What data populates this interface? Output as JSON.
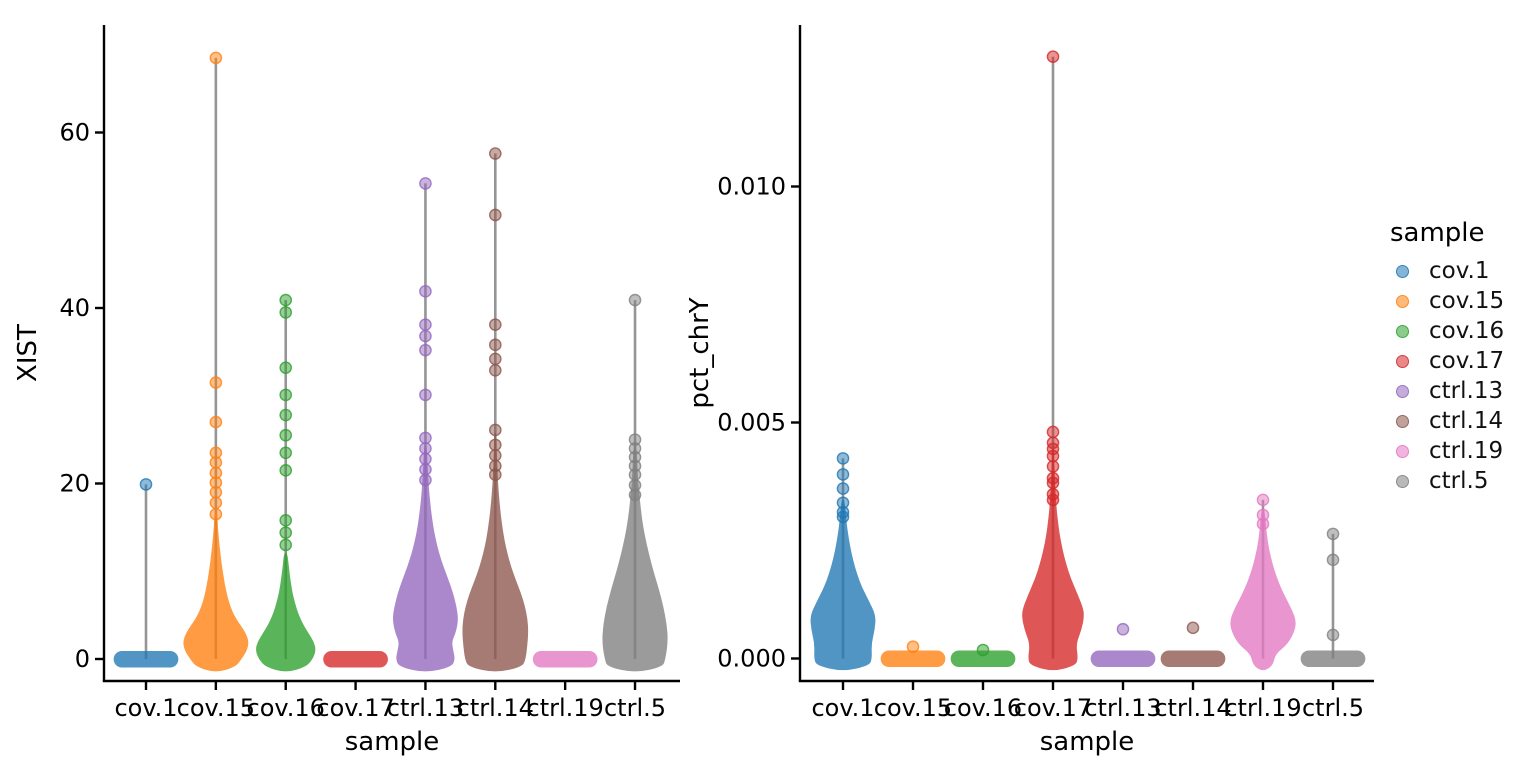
{
  "figure": {
    "background": "#ffffff",
    "stem_color": "#8a8a8a",
    "axis_color": "#000000"
  },
  "legend": {
    "title": "sample",
    "items": [
      {
        "label": "cov.1",
        "color": "#1f77b4"
      },
      {
        "label": "cov.15",
        "color": "#ff7f0e"
      },
      {
        "label": "cov.16",
        "color": "#2ca02c"
      },
      {
        "label": "cov.17",
        "color": "#d62728"
      },
      {
        "label": "ctrl.13",
        "color": "#9467bd"
      },
      {
        "label": "ctrl.14",
        "color": "#8c564b"
      },
      {
        "label": "ctrl.19",
        "color": "#e377c2"
      },
      {
        "label": "ctrl.5",
        "color": "#7f7f7f"
      }
    ]
  },
  "chart_data": [
    {
      "type": "violin",
      "panel": "left",
      "xlabel": "sample",
      "ylabel": "XIST",
      "ylim": [
        -2.5,
        72.3
      ],
      "grid": false,
      "categories": [
        "cov.1",
        "cov.15",
        "cov.16",
        "cov.17",
        "ctrl.13",
        "ctrl.14",
        "ctrl.19",
        "ctrl.5"
      ],
      "yticks": [
        {
          "value": 0,
          "label": "0"
        },
        {
          "value": 20,
          "label": "20"
        },
        {
          "value": 40,
          "label": "40"
        },
        {
          "value": 60,
          "label": "60"
        }
      ],
      "series": [
        {
          "name": "cov.1",
          "color": "#1f77b4",
          "kind": "pill",
          "stem_top": 19.9,
          "points": [
            19.9
          ]
        },
        {
          "name": "cov.15",
          "color": "#ff7f0e",
          "kind": "violin",
          "stem_top": 68.5,
          "profile": [
            [
              -0.9,
              0.6
            ],
            [
              0,
              0.78
            ],
            [
              1,
              0.95
            ],
            [
              2,
              1.0
            ],
            [
              3,
              0.9
            ],
            [
              4,
              0.72
            ],
            [
              5,
              0.55
            ],
            [
              6,
              0.44
            ],
            [
              7,
              0.36
            ],
            [
              8,
              0.3
            ],
            [
              9,
              0.25
            ],
            [
              10,
              0.21
            ],
            [
              11,
              0.17
            ],
            [
              12,
              0.14
            ],
            [
              13,
              0.11
            ],
            [
              14,
              0.085
            ],
            [
              15,
              0.065
            ],
            [
              16,
              0.05
            ],
            [
              16.5,
              0.04
            ]
          ],
          "points": [
            16.5,
            17.8,
            19.0,
            20.1,
            21.2,
            22.4,
            23.5,
            27.0,
            31.5,
            68.5
          ]
        },
        {
          "name": "cov.16",
          "color": "#2ca02c",
          "kind": "violin",
          "stem_top": 40.9,
          "profile": [
            [
              -0.9,
              0.62
            ],
            [
              0,
              0.82
            ],
            [
              1,
              0.92
            ],
            [
              2,
              0.85
            ],
            [
              3,
              0.68
            ],
            [
              4,
              0.52
            ],
            [
              5,
              0.4
            ],
            [
              6,
              0.31
            ],
            [
              7,
              0.24
            ],
            [
              8,
              0.185
            ],
            [
              9,
              0.145
            ],
            [
              10,
              0.11
            ],
            [
              11,
              0.08
            ],
            [
              11.8,
              0.06
            ]
          ],
          "points": [
            13.0,
            14.4,
            15.8,
            21.5,
            23.5,
            25.5,
            27.8,
            30.1,
            33.2,
            39.5,
            40.9
          ]
        },
        {
          "name": "cov.17",
          "color": "#d62728",
          "kind": "pill",
          "stem_top": null,
          "points": []
        },
        {
          "name": "ctrl.13",
          "color": "#9467bd",
          "kind": "violin",
          "stem_top": 54.2,
          "profile": [
            [
              -0.9,
              0.8
            ],
            [
              0,
              0.9
            ],
            [
              1,
              0.84
            ],
            [
              2,
              0.8
            ],
            [
              3,
              0.92
            ],
            [
              4.5,
              1.0
            ],
            [
              6,
              0.94
            ],
            [
              7.5,
              0.84
            ],
            [
              9,
              0.7
            ],
            [
              10.5,
              0.55
            ],
            [
              12,
              0.42
            ],
            [
              13.5,
              0.32
            ],
            [
              15,
              0.24
            ],
            [
              16.5,
              0.185
            ],
            [
              18,
              0.14
            ],
            [
              19.5,
              0.105
            ],
            [
              21,
              0.08
            ],
            [
              22.5,
              0.06
            ],
            [
              24,
              0.045
            ]
          ],
          "points": [
            20.4,
            21.6,
            22.8,
            24.0,
            25.2,
            30.1,
            35.2,
            36.8,
            38.1,
            41.9,
            54.2
          ]
        },
        {
          "name": "ctrl.14",
          "color": "#8c564b",
          "kind": "violin",
          "stem_top": 57.6,
          "profile": [
            [
              -0.9,
              0.82
            ],
            [
              0,
              0.92
            ],
            [
              1.5,
              0.97
            ],
            [
              3,
              1.0
            ],
            [
              4.5,
              0.98
            ],
            [
              6,
              0.9
            ],
            [
              7.5,
              0.78
            ],
            [
              9,
              0.62
            ],
            [
              10.5,
              0.48
            ],
            [
              12,
              0.37
            ],
            [
              13.5,
              0.28
            ],
            [
              15,
              0.215
            ],
            [
              16.5,
              0.165
            ],
            [
              18,
              0.125
            ],
            [
              19.5,
              0.095
            ],
            [
              21,
              0.07
            ],
            [
              22.5,
              0.055
            ],
            [
              24,
              0.04
            ],
            [
              25.5,
              0.03
            ]
          ],
          "points": [
            21.0,
            22.0,
            23.2,
            24.4,
            26.1,
            32.9,
            34.2,
            35.8,
            38.1,
            50.6,
            57.6
          ]
        },
        {
          "name": "ctrl.19",
          "color": "#e377c2",
          "kind": "pill",
          "stem_top": null,
          "points": []
        },
        {
          "name": "ctrl.5",
          "color": "#7f7f7f",
          "kind": "violin",
          "stem_top": 40.9,
          "profile": [
            [
              -0.9,
              0.84
            ],
            [
              0,
              0.92
            ],
            [
              2,
              1.0
            ],
            [
              4,
              0.96
            ],
            [
              6,
              0.86
            ],
            [
              8,
              0.72
            ],
            [
              10,
              0.56
            ],
            [
              12,
              0.42
            ],
            [
              14,
              0.3
            ],
            [
              16,
              0.21
            ],
            [
              18,
              0.15
            ],
            [
              20,
              0.1
            ],
            [
              22,
              0.07
            ],
            [
              24,
              0.05
            ]
          ],
          "points": [
            18.7,
            19.8,
            21.0,
            22.0,
            23.0,
            24.0,
            25.0,
            40.9
          ]
        }
      ]
    },
    {
      "type": "violin",
      "panel": "right",
      "xlabel": "sample",
      "ylabel": "pct_chrY",
      "ylim": [
        -0.0005,
        0.0134
      ],
      "grid": false,
      "categories": [
        "cov.1",
        "cov.15",
        "cov.16",
        "cov.17",
        "ctrl.13",
        "ctrl.14",
        "ctrl.19",
        "ctrl.5"
      ],
      "yticks": [
        {
          "value": 0,
          "label": "0.000"
        },
        {
          "value": 0.005,
          "label": "0.005"
        },
        {
          "value": 0.01,
          "label": "0.010"
        }
      ],
      "series": [
        {
          "name": "cov.1",
          "color": "#1f77b4",
          "kind": "violin",
          "stem_top": 0.00424,
          "profile": [
            [
              -0.00015,
              0.8
            ],
            [
              0,
              0.88
            ],
            [
              0.0003,
              0.86
            ],
            [
              0.0006,
              0.96
            ],
            [
              0.0009,
              1.0
            ],
            [
              0.0012,
              0.8
            ],
            [
              0.0015,
              0.58
            ],
            [
              0.0018,
              0.42
            ],
            [
              0.0021,
              0.3
            ],
            [
              0.0024,
              0.21
            ],
            [
              0.0027,
              0.14
            ],
            [
              0.003,
              0.09
            ],
            [
              0.0033,
              0.055
            ]
          ],
          "points": [
            0.003,
            0.0031,
            0.0033,
            0.0036,
            0.0039,
            0.00424
          ]
        },
        {
          "name": "cov.15",
          "color": "#ff7f0e",
          "kind": "pill",
          "stem_top": null,
          "points": [
            0.00025
          ]
        },
        {
          "name": "cov.16",
          "color": "#2ca02c",
          "kind": "pill",
          "stem_top": null,
          "points": [
            0.00018
          ]
        },
        {
          "name": "cov.17",
          "color": "#d62728",
          "kind": "violin",
          "stem_top": 0.01275,
          "profile": [
            [
              -0.00015,
              0.68
            ],
            [
              0,
              0.76
            ],
            [
              0.0003,
              0.7
            ],
            [
              0.0006,
              0.86
            ],
            [
              0.0009,
              0.95
            ],
            [
              0.0011,
              0.9
            ],
            [
              0.0014,
              0.72
            ],
            [
              0.0017,
              0.54
            ],
            [
              0.002,
              0.4
            ],
            [
              0.0023,
              0.29
            ],
            [
              0.0026,
              0.21
            ],
            [
              0.0029,
              0.15
            ],
            [
              0.0032,
              0.105
            ],
            [
              0.0036,
              0.07
            ],
            [
              0.004,
              0.045
            ],
            [
              0.0044,
              0.03
            ]
          ],
          "points": [
            0.00336,
            0.00348,
            0.00372,
            0.00382,
            0.00407,
            0.00429,
            0.00444,
            0.00457,
            0.0048,
            0.01275
          ]
        },
        {
          "name": "ctrl.13",
          "color": "#9467bd",
          "kind": "pill",
          "stem_top": null,
          "points": [
            0.00062
          ]
        },
        {
          "name": "ctrl.14",
          "color": "#8c564b",
          "kind": "pill",
          "stem_top": null,
          "points": [
            0.00065
          ]
        },
        {
          "name": "ctrl.19",
          "color": "#e377c2",
          "kind": "violin",
          "stem_top": 0.00336,
          "profile": [
            [
              -0.00015,
              0.3
            ],
            [
              0.0001,
              0.38
            ],
            [
              0.0003,
              0.75
            ],
            [
              0.0006,
              0.97
            ],
            [
              0.0008,
              1.0
            ],
            [
              0.001,
              0.9
            ],
            [
              0.0013,
              0.68
            ],
            [
              0.0016,
              0.48
            ],
            [
              0.0019,
              0.33
            ],
            [
              0.0022,
              0.22
            ],
            [
              0.0025,
              0.14
            ],
            [
              0.0028,
              0.09
            ],
            [
              0.0031,
              0.055
            ]
          ],
          "points": [
            0.00285,
            0.00304,
            0.00336
          ]
        },
        {
          "name": "ctrl.5",
          "color": "#7f7f7f",
          "kind": "pill",
          "stem_top": 0.00264,
          "points": [
            0.0005,
            0.00209,
            0.00264
          ]
        }
      ]
    }
  ]
}
